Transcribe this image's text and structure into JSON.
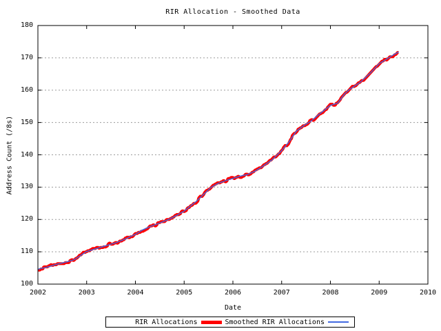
{
  "title": "RIR Allocation - Smoothed Data",
  "axes": {
    "x_label": "Date",
    "y_label": "Address Count (/8s)",
    "x_ticks": [
      2002,
      2003,
      2004,
      2005,
      2006,
      2007,
      2008,
      2009,
      2010
    ],
    "y_ticks": [
      100,
      110,
      120,
      130,
      140,
      150,
      160,
      170,
      180
    ]
  },
  "legend": {
    "entries": [
      {
        "label": "RIR Allocations",
        "color": "#ff0000",
        "style": "thick"
      },
      {
        "label": "Smoothed RIR Allocations",
        "color": "#4169e1",
        "style": "thin"
      }
    ]
  },
  "colors": {
    "background": "#ffffff",
    "border": "#000000",
    "grid": "#9a9a9a",
    "raw_series": "#ff0000",
    "smoothed_series": "#4169e1",
    "text": "#000000"
  },
  "chart_data": {
    "type": "line",
    "title": "RIR Allocation - Smoothed Data",
    "xlabel": "Date",
    "ylabel": "Address Count (/8s)",
    "xlim": [
      2002,
      2010
    ],
    "ylim": [
      100,
      180
    ],
    "grid": "horizontal-dotted",
    "legend_position": "below-chart-centered",
    "series": [
      {
        "name": "RIR Allocations",
        "color": "#ff0000",
        "style": "thick-noisy-stepped",
        "x": [
          2002.0,
          2002.2,
          2002.4,
          2002.6,
          2002.75,
          2002.85,
          2003.0,
          2003.2,
          2003.4,
          2003.6,
          2003.8,
          2004.0,
          2004.15,
          2004.3,
          2004.5,
          2004.7,
          2004.85,
          2005.0,
          2005.1,
          2005.25,
          2005.4,
          2005.55,
          2005.7,
          2005.85,
          2006.0,
          2006.15,
          2006.3,
          2006.45,
          2006.6,
          2006.8,
          2007.0,
          2007.15,
          2007.3,
          2007.45,
          2007.6,
          2007.75,
          2008.0,
          2008.15,
          2008.3,
          2008.4,
          2008.6,
          2008.8,
          2009.0,
          2009.15,
          2009.3,
          2009.4
        ],
        "y": [
          104.6,
          105.3,
          106.2,
          106.9,
          107.6,
          108.6,
          110.1,
          111.0,
          111.9,
          112.8,
          114.0,
          115.4,
          116.8,
          117.8,
          118.9,
          120.1,
          121.3,
          122.6,
          123.8,
          125.6,
          127.8,
          129.9,
          131.2,
          132.0,
          132.7,
          133.4,
          133.9,
          134.9,
          136.3,
          138.4,
          141.3,
          144.0,
          147.3,
          149.0,
          150.4,
          152.3,
          155.3,
          156.0,
          159.0,
          160.3,
          162.3,
          165.0,
          168.2,
          169.6,
          171.0,
          171.8
        ],
        "noise_amplitude": 0.8
      },
      {
        "name": "Smoothed RIR Allocations",
        "color": "#4169e1",
        "style": "thin-smooth",
        "x": [
          2002.0,
          2002.2,
          2002.4,
          2002.6,
          2002.75,
          2002.85,
          2003.0,
          2003.2,
          2003.4,
          2003.6,
          2003.8,
          2004.0,
          2004.15,
          2004.3,
          2004.5,
          2004.7,
          2004.85,
          2005.0,
          2005.1,
          2005.25,
          2005.4,
          2005.55,
          2005.7,
          2005.85,
          2006.0,
          2006.15,
          2006.3,
          2006.45,
          2006.6,
          2006.8,
          2007.0,
          2007.15,
          2007.3,
          2007.45,
          2007.6,
          2007.75,
          2008.0,
          2008.15,
          2008.3,
          2008.4,
          2008.6,
          2008.8,
          2009.0,
          2009.15,
          2009.3,
          2009.4
        ],
        "y": [
          104.6,
          105.3,
          106.2,
          106.9,
          107.6,
          108.6,
          110.1,
          111.0,
          111.9,
          112.8,
          114.0,
          115.4,
          116.8,
          117.8,
          118.9,
          120.1,
          121.3,
          122.6,
          123.8,
          125.6,
          127.8,
          129.9,
          131.2,
          132.0,
          132.7,
          133.4,
          133.9,
          134.9,
          136.3,
          138.4,
          141.3,
          144.0,
          147.3,
          149.0,
          150.4,
          152.3,
          155.3,
          156.0,
          159.0,
          160.3,
          162.3,
          165.0,
          168.2,
          169.6,
          171.0,
          171.8
        ]
      }
    ]
  }
}
